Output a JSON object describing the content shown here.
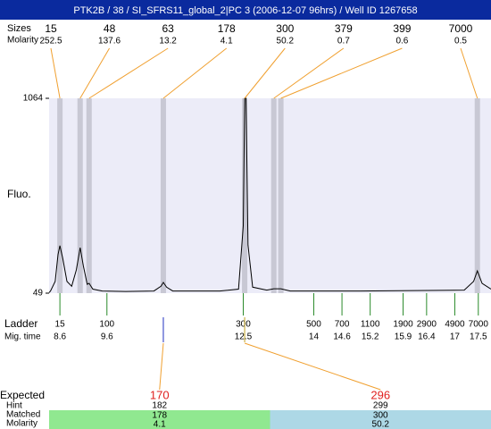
{
  "title": "PTK2B / 38 / SI_SFRS11_global_2|PC 3 (2006-12-07 96hrs) / Well ID 1267658",
  "chart_data": {
    "type": "line",
    "y_label": "Fluo.",
    "ylim": [
      49,
      1064
    ],
    "yticks": [
      49,
      1064
    ],
    "xlim": [
      8.37,
      17.77
    ],
    "color": "#000000",
    "x": [
      8.37,
      8.4,
      8.5,
      8.56,
      8.6,
      8.66,
      8.75,
      8.85,
      8.95,
      9.03,
      9.1,
      9.18,
      9.22,
      9.3,
      9.5,
      10.0,
      10.6,
      10.75,
      10.8,
      10.87,
      11.0,
      12.0,
      12.4,
      12.5,
      12.53,
      12.56,
      12.6,
      12.7,
      13.0,
      13.15,
      13.3,
      13.5,
      15.0,
      17.2,
      17.4,
      17.48,
      17.58,
      17.77
    ],
    "values": [
      52,
      60,
      110,
      250,
      296,
      230,
      110,
      85,
      170,
      286,
      190,
      95,
      100,
      70,
      60,
      58,
      60,
      85,
      105,
      80,
      60,
      60,
      70,
      400,
      1064,
      1064,
      300,
      80,
      65,
      72,
      72,
      60,
      60,
      65,
      110,
      165,
      100,
      70
    ],
    "peaks": {
      "labels": [
        "Sizes",
        "Molarity"
      ],
      "sizes": [
        15,
        48,
        63,
        178,
        300,
        379,
        399,
        7000
      ],
      "molarity": [
        252.5,
        137.6,
        13.2,
        4.1,
        50.2,
        0.7,
        0.6,
        0.5
      ],
      "times": [
        8.6,
        9.03,
        9.22,
        10.8,
        12.53,
        13.15,
        13.3,
        17.48
      ]
    },
    "ladder": {
      "labels": [
        "Ladder",
        "Mig. time"
      ],
      "sizes": [
        15,
        100,
        300,
        500,
        700,
        1100,
        1900,
        2900,
        4900,
        7000
      ],
      "times": [
        8.6,
        9.6,
        12.5,
        14,
        14.6,
        15.2,
        15.9,
        16.4,
        17,
        17.5
      ]
    },
    "expected": {
      "label": "Expected",
      "row_labels": [
        "Hint",
        "Matched",
        "Molarity"
      ],
      "items": [
        {
          "expected": 170,
          "hint": 182,
          "matched": 178,
          "molarity": 4.1,
          "color": "#90e890"
        },
        {
          "expected": 296,
          "hint": 299,
          "matched": 300,
          "molarity": 50.2,
          "color": "#add8e6"
        }
      ]
    }
  }
}
